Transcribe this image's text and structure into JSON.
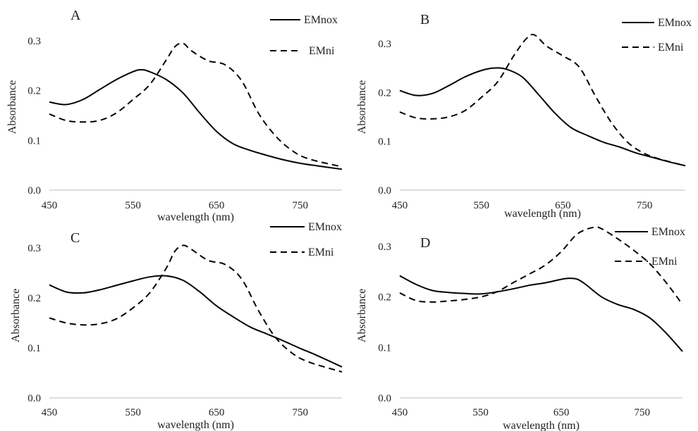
{
  "chart_data": [
    {
      "type": "line",
      "panel_label": "A",
      "xlabel": "wavelength (nm)",
      "ylabel": "Absorbance",
      "xlim": [
        450,
        800
      ],
      "ylim": [
        0,
        0.3
      ],
      "xticks": [
        "450",
        "550",
        "650",
        "750"
      ],
      "yticks": [
        "0.0",
        "0.1",
        "0.2",
        "0.3"
      ],
      "grid": false,
      "legend_position": "top-right",
      "series": [
        {
          "name": "EMnox",
          "style": "solid",
          "color": "#000000",
          "x": [
            450,
            470,
            490,
            510,
            530,
            550,
            560,
            570,
            590,
            610,
            630,
            650,
            670,
            690,
            710,
            730,
            750,
            770,
            800
          ],
          "y": [
            0.177,
            0.172,
            0.182,
            0.202,
            0.222,
            0.238,
            0.242,
            0.238,
            0.222,
            0.195,
            0.155,
            0.118,
            0.093,
            0.08,
            0.07,
            0.061,
            0.054,
            0.049,
            0.042
          ]
        },
        {
          "name": "EMni",
          "style": "dashed",
          "color": "#000000",
          "x": [
            450,
            470,
            490,
            510,
            530,
            550,
            570,
            590,
            600,
            610,
            620,
            640,
            660,
            680,
            700,
            720,
            740,
            760,
            800
          ],
          "y": [
            0.153,
            0.14,
            0.137,
            0.14,
            0.155,
            0.182,
            0.212,
            0.262,
            0.288,
            0.295,
            0.28,
            0.26,
            0.252,
            0.22,
            0.155,
            0.11,
            0.08,
            0.063,
            0.047
          ]
        }
      ]
    },
    {
      "type": "line",
      "panel_label": "B",
      "xlabel": "wavelength (nm)",
      "ylabel": "Absorbance",
      "xlim": [
        450,
        800
      ],
      "ylim": [
        0,
        0.3
      ],
      "xticks": [
        "450",
        "550",
        "650",
        "750"
      ],
      "yticks": [
        "0.0",
        "0.1",
        "0.2",
        "0.3"
      ],
      "grid": false,
      "legend_position": "top-right",
      "series": [
        {
          "name": "EMnox",
          "style": "solid",
          "color": "#000000",
          "x": [
            450,
            470,
            490,
            510,
            530,
            550,
            565,
            580,
            600,
            620,
            640,
            660,
            680,
            700,
            720,
            740,
            760,
            780,
            800
          ],
          "y": [
            0.204,
            0.194,
            0.198,
            0.214,
            0.232,
            0.245,
            0.25,
            0.248,
            0.232,
            0.196,
            0.158,
            0.128,
            0.112,
            0.098,
            0.088,
            0.076,
            0.067,
            0.058,
            0.05
          ]
        },
        {
          "name": "EMni",
          "style": "dashed",
          "color": "#000000",
          "x": [
            450,
            470,
            490,
            510,
            530,
            550,
            570,
            590,
            605,
            615,
            630,
            650,
            670,
            690,
            710,
            730,
            750,
            770,
            800
          ],
          "y": [
            0.16,
            0.148,
            0.146,
            0.15,
            0.163,
            0.19,
            0.222,
            0.276,
            0.31,
            0.318,
            0.295,
            0.275,
            0.252,
            0.192,
            0.137,
            0.097,
            0.075,
            0.063,
            0.05
          ]
        }
      ]
    },
    {
      "type": "line",
      "panel_label": "C",
      "xlabel": "wavelength (nm)",
      "ylabel": "Absorbance",
      "xlim": [
        450,
        800
      ],
      "ylim": [
        0,
        0.3
      ],
      "xticks": [
        "450",
        "550",
        "650",
        "750"
      ],
      "yticks": [
        "0.0",
        "0.1",
        "0.2",
        "0.3"
      ],
      "grid": false,
      "legend_position": "top-right",
      "series": [
        {
          "name": "EMnox",
          "style": "solid",
          "color": "#000000",
          "x": [
            450,
            470,
            490,
            510,
            530,
            550,
            570,
            590,
            610,
            630,
            650,
            670,
            690,
            710,
            730,
            750,
            770,
            800
          ],
          "y": [
            0.226,
            0.212,
            0.21,
            0.216,
            0.225,
            0.234,
            0.242,
            0.244,
            0.235,
            0.212,
            0.184,
            0.162,
            0.142,
            0.128,
            0.114,
            0.099,
            0.085,
            0.062
          ]
        },
        {
          "name": "EMni",
          "style": "dashed",
          "color": "#000000",
          "x": [
            450,
            470,
            490,
            510,
            530,
            550,
            570,
            590,
            600,
            610,
            620,
            640,
            660,
            680,
            700,
            720,
            740,
            760,
            800
          ],
          "y": [
            0.16,
            0.15,
            0.146,
            0.148,
            0.158,
            0.18,
            0.21,
            0.26,
            0.293,
            0.305,
            0.297,
            0.275,
            0.267,
            0.238,
            0.175,
            0.122,
            0.09,
            0.072,
            0.052
          ]
        }
      ]
    },
    {
      "type": "line",
      "panel_label": "D",
      "xlabel": "wavelength (nm)",
      "ylabel": "Absorbance",
      "xlim": [
        450,
        800
      ],
      "ylim": [
        0,
        0.3
      ],
      "xticks": [
        "450",
        "550",
        "650",
        "750"
      ],
      "yticks": [
        "0.0",
        "0.1",
        "0.2",
        "0.3"
      ],
      "grid": false,
      "legend_position": "top-right",
      "series": [
        {
          "name": "EMnox",
          "style": "solid",
          "color": "#000000",
          "x": [
            450,
            470,
            490,
            510,
            530,
            550,
            570,
            590,
            610,
            630,
            650,
            660,
            670,
            680,
            700,
            720,
            740,
            760,
            780,
            800
          ],
          "y": [
            0.242,
            0.225,
            0.213,
            0.209,
            0.207,
            0.206,
            0.21,
            0.216,
            0.223,
            0.228,
            0.235,
            0.237,
            0.235,
            0.225,
            0.2,
            0.185,
            0.175,
            0.158,
            0.128,
            0.092
          ]
        },
        {
          "name": "EMni",
          "style": "dashed",
          "color": "#000000",
          "x": [
            450,
            470,
            490,
            510,
            530,
            550,
            570,
            590,
            610,
            630,
            650,
            670,
            690,
            700,
            720,
            740,
            760,
            780,
            800
          ],
          "y": [
            0.208,
            0.193,
            0.19,
            0.192,
            0.195,
            0.2,
            0.21,
            0.228,
            0.245,
            0.263,
            0.29,
            0.325,
            0.338,
            0.335,
            0.315,
            0.292,
            0.265,
            0.228,
            0.185
          ]
        }
      ]
    }
  ]
}
